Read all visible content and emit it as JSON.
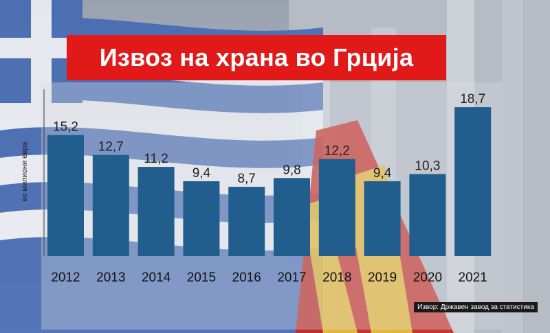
{
  "header": {
    "title": "Извоз на храна во Грција"
  },
  "source_note": "Извор: Државен завод за статистика",
  "colors": {
    "bar": "#215e8e",
    "title_bg": "#e11919"
  },
  "chart_data": {
    "type": "bar",
    "title": "Извоз на храна во Грција",
    "xlabel": "",
    "ylabel": "во милиони евра",
    "categories": [
      "2012",
      "2013",
      "2014",
      "2015",
      "2016",
      "2017",
      "2018",
      "2019",
      "2020",
      "2021"
    ],
    "values": [
      15.2,
      12.7,
      11.2,
      9.4,
      8.7,
      9.8,
      12.2,
      9.4,
      10.3,
      18.7
    ],
    "value_labels": [
      "15,2",
      "12,7",
      "11,2",
      "9,4",
      "8,7",
      "9,8",
      "12,2",
      "9,4",
      "10,3",
      "18,7"
    ],
    "ylim": [
      0,
      20
    ],
    "grid": false,
    "legend": "none"
  }
}
